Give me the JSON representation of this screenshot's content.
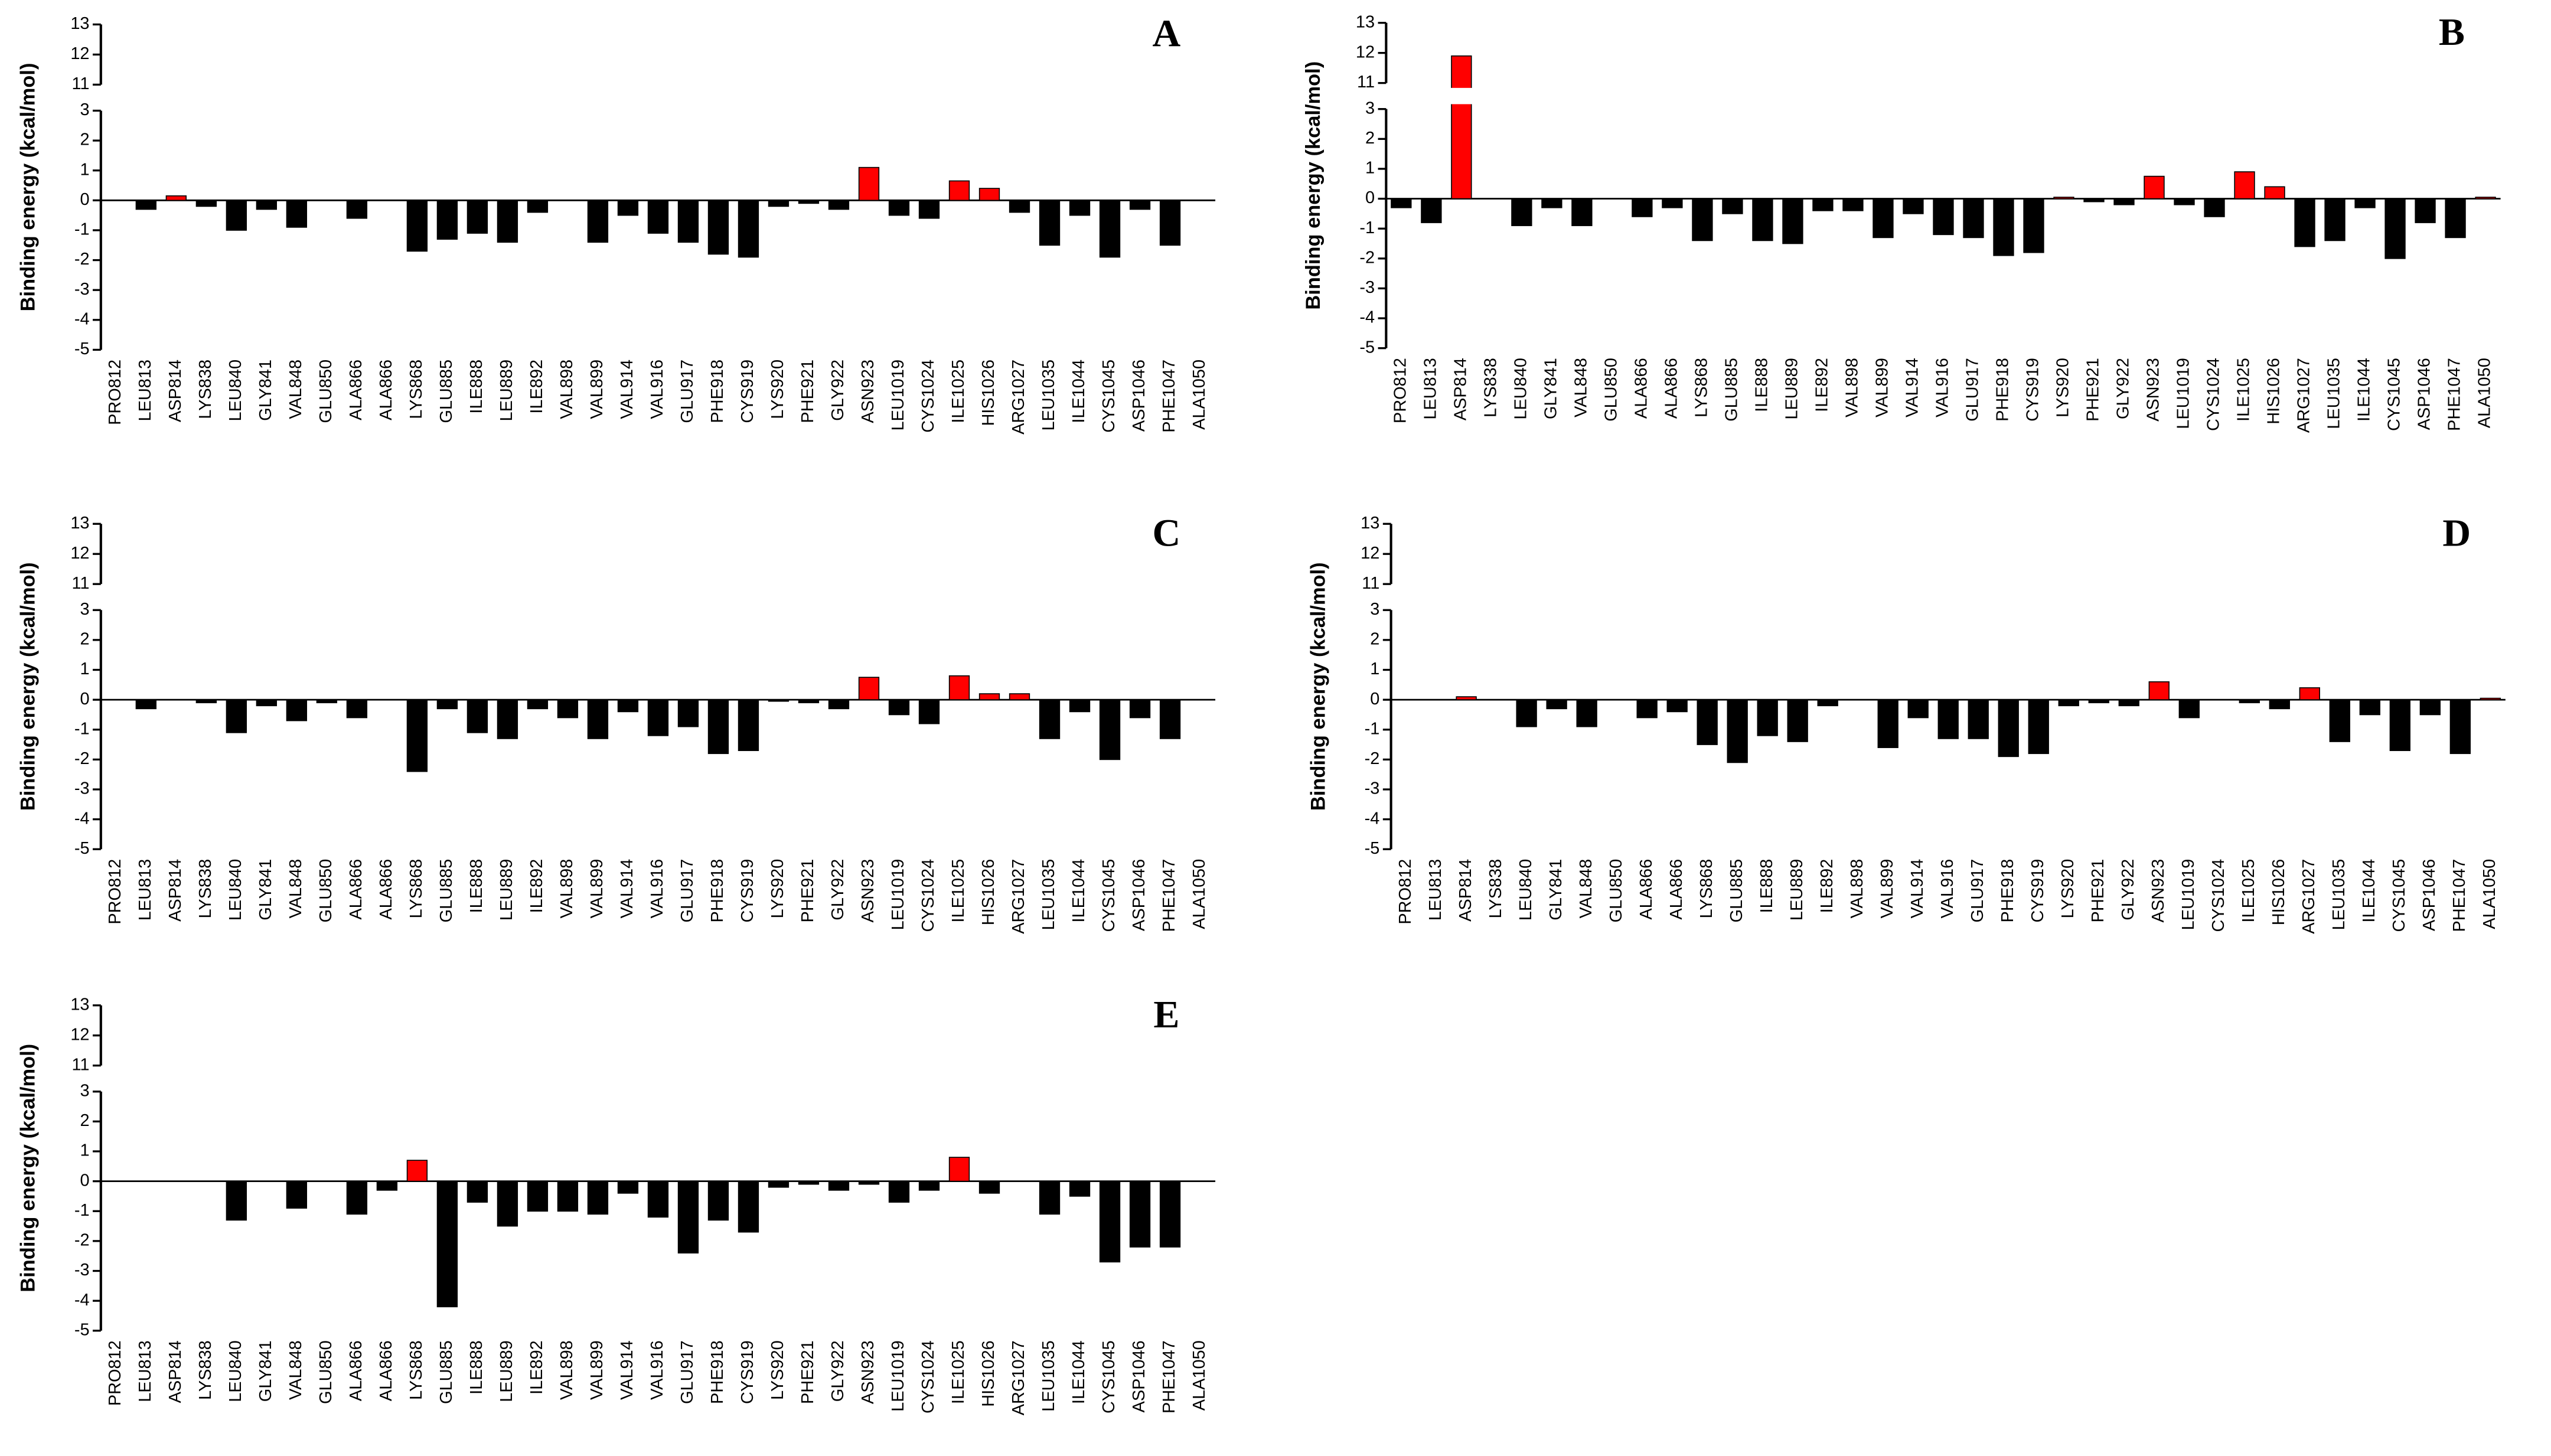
{
  "chart_data": [
    {
      "type": "bar",
      "panel_label": "A",
      "y_label": "Binding energy (kcal/mol)",
      "categories": [
        "PRO812",
        "LEU813",
        "ASP814",
        "LYS838",
        "LEU840",
        "GLY841",
        "VAL848",
        "GLU850",
        "ALA866",
        "ALA866",
        "LYS868",
        "GLU885",
        "ILE888",
        "LEU889",
        "ILE892",
        "VAL898",
        "VAL899",
        "VAL914",
        "VAL916",
        "GLU917",
        "PHE918",
        "CYS919",
        "LYS920",
        "PHE921",
        "GLY922",
        "ASN923",
        "LEU1019",
        "CYS1024",
        "ILE1025",
        "HIS1026",
        "ARG1027",
        "LEU1035",
        "ILE1044",
        "CYS1045",
        "ASP1046",
        "PHE1047",
        "ALA1050"
      ],
      "values": [
        0,
        -0.3,
        0.15,
        -0.2,
        -1.0,
        -0.3,
        -0.9,
        0,
        -0.6,
        0,
        -1.7,
        -1.3,
        -1.1,
        -1.4,
        -0.4,
        0,
        -1.4,
        -0.5,
        -1.1,
        -1.4,
        -1.8,
        -1.9,
        -0.2,
        -0.1,
        -0.3,
        1.1,
        -0.5,
        -0.6,
        0.65,
        0.4,
        -0.4,
        -1.5,
        -0.5,
        -1.9,
        -0.3,
        -1.5,
        0
      ],
      "ylim": [
        -5,
        13
      ],
      "axis_break": [
        3,
        11
      ],
      "yticks": [
        -5,
        -4,
        -3,
        -2,
        -1,
        0,
        1,
        2,
        3,
        11,
        12,
        13
      ],
      "positive_color": "#ff0000",
      "negative_color": "#000000"
    },
    {
      "type": "bar",
      "panel_label": "B",
      "y_label": "Binding energy (kcal/mol)",
      "categories": [
        "PRO812",
        "LEU813",
        "ASP814",
        "LYS838",
        "LEU840",
        "GLY841",
        "VAL848",
        "GLU850",
        "ALA866",
        "ALA866",
        "LYS868",
        "GLU885",
        "ILE888",
        "LEU889",
        "ILE892",
        "VAL898",
        "VAL899",
        "VAL914",
        "VAL916",
        "GLU917",
        "PHE918",
        "CYS919",
        "LYS920",
        "PHE921",
        "GLY922",
        "ASN923",
        "LEU1019",
        "CYS1024",
        "ILE1025",
        "HIS1026",
        "ARG1027",
        "LEU1035",
        "ILE1044",
        "CYS1045",
        "ASP1046",
        "PHE1047",
        "ALA1050"
      ],
      "values": [
        -0.3,
        -0.8,
        11.9,
        0,
        -0.9,
        -0.3,
        -0.9,
        0,
        -0.6,
        -0.3,
        -1.4,
        -0.5,
        -1.4,
        -1.5,
        -0.4,
        -0.4,
        -1.3,
        -0.5,
        -1.2,
        -1.3,
        -1.9,
        -1.8,
        0.05,
        -0.1,
        -0.2,
        0.75,
        -0.2,
        -0.6,
        0.9,
        0.4,
        -1.6,
        -1.4,
        -0.3,
        -2.0,
        -0.8,
        -1.3,
        0.05
      ],
      "ylim": [
        -5,
        13
      ],
      "axis_break": [
        3,
        11
      ],
      "yticks": [
        -5,
        -4,
        -3,
        -2,
        -1,
        0,
        1,
        2,
        3,
        11,
        12,
        13
      ],
      "positive_color": "#ff0000",
      "negative_color": "#000000"
    },
    {
      "type": "bar",
      "panel_label": "C",
      "y_label": "Binding energy (kcal/mol)",
      "categories": [
        "PRO812",
        "LEU813",
        "ASP814",
        "LYS838",
        "LEU840",
        "GLY841",
        "VAL848",
        "GLU850",
        "ALA866",
        "ALA866",
        "LYS868",
        "GLU885",
        "ILE888",
        "LEU889",
        "ILE892",
        "VAL898",
        "VAL899",
        "VAL914",
        "VAL916",
        "GLU917",
        "PHE918",
        "CYS919",
        "LYS920",
        "PHE921",
        "GLY922",
        "ASN923",
        "LEU1019",
        "CYS1024",
        "ILE1025",
        "HIS1026",
        "ARG1027",
        "LEU1035",
        "ILE1044",
        "CYS1045",
        "ASP1046",
        "PHE1047",
        "ALA1050"
      ],
      "values": [
        0,
        -0.3,
        0,
        -0.1,
        -1.1,
        -0.2,
        -0.7,
        -0.1,
        -0.6,
        0,
        -2.4,
        -0.3,
        -1.1,
        -1.3,
        -0.3,
        -0.6,
        -1.3,
        -0.4,
        -1.2,
        -0.9,
        -1.8,
        -1.7,
        -0.05,
        -0.1,
        -0.3,
        0.75,
        -0.5,
        -0.8,
        0.8,
        0.2,
        0.2,
        -1.3,
        -0.4,
        -2.0,
        -0.6,
        -1.3,
        0
      ],
      "ylim": [
        -5,
        13
      ],
      "axis_break": [
        3,
        11
      ],
      "yticks": [
        -5,
        -4,
        -3,
        -2,
        -1,
        0,
        1,
        2,
        3,
        11,
        12,
        13
      ],
      "positive_color": "#ff0000",
      "negative_color": "#000000"
    },
    {
      "type": "bar",
      "panel_label": "D",
      "y_label": "Binding energy (kcal/mol)",
      "categories": [
        "PRO812",
        "LEU813",
        "ASP814",
        "LYS838",
        "LEU840",
        "GLY841",
        "VAL848",
        "GLU850",
        "ALA866",
        "ALA866",
        "LYS868",
        "GLU885",
        "ILE888",
        "LEU889",
        "ILE892",
        "VAL898",
        "VAL899",
        "VAL914",
        "VAL916",
        "GLU917",
        "PHE918",
        "CYS919",
        "LYS920",
        "PHE921",
        "GLY922",
        "ASN923",
        "LEU1019",
        "CYS1024",
        "ILE1025",
        "HIS1026",
        "ARG1027",
        "LEU1035",
        "ILE1044",
        "CYS1045",
        "ASP1046",
        "PHE1047",
        "ALA1050"
      ],
      "values": [
        0,
        0,
        0.1,
        0,
        -0.9,
        -0.3,
        -0.9,
        0,
        -0.6,
        -0.4,
        -1.5,
        -2.1,
        -1.2,
        -1.4,
        -0.2,
        0,
        -1.6,
        -0.6,
        -1.3,
        -1.3,
        -1.9,
        -1.8,
        -0.2,
        -0.1,
        -0.2,
        0.6,
        -0.6,
        0,
        -0.1,
        -0.3,
        0.4,
        -1.4,
        -0.5,
        -1.7,
        -0.5,
        -1.8,
        0.05
      ],
      "ylim": [
        -5,
        13
      ],
      "axis_break": [
        3,
        11
      ],
      "yticks": [
        -5,
        -4,
        -3,
        -2,
        -1,
        0,
        1,
        2,
        3,
        11,
        12,
        13
      ],
      "positive_color": "#ff0000",
      "negative_color": "#000000"
    },
    {
      "type": "bar",
      "panel_label": "E",
      "y_label": "Binding energy (kcal/mol)",
      "categories": [
        "PRO812",
        "LEU813",
        "ASP814",
        "LYS838",
        "LEU840",
        "GLY841",
        "VAL848",
        "GLU850",
        "ALA866",
        "ALA866",
        "LYS868",
        "GLU885",
        "ILE888",
        "LEU889",
        "ILE892",
        "VAL898",
        "VAL899",
        "VAL914",
        "VAL916",
        "GLU917",
        "PHE918",
        "CYS919",
        "LYS920",
        "PHE921",
        "GLY922",
        "ASN923",
        "LEU1019",
        "CYS1024",
        "ILE1025",
        "HIS1026",
        "ARG1027",
        "LEU1035",
        "ILE1044",
        "CYS1045",
        "ASP1046",
        "PHE1047",
        "ALA1050"
      ],
      "values": [
        0,
        0,
        0,
        0,
        -1.3,
        0,
        -0.9,
        0,
        -1.1,
        -0.3,
        0.7,
        -4.2,
        -0.7,
        -1.5,
        -1.0,
        -1.0,
        -1.1,
        -0.4,
        -1.2,
        -2.4,
        -1.3,
        -1.7,
        -0.2,
        -0.1,
        -0.3,
        -0.1,
        -0.7,
        -0.3,
        0.8,
        -0.4,
        0,
        -1.1,
        -0.5,
        -2.7,
        -2.2,
        -2.2,
        0
      ],
      "ylim": [
        -5,
        13
      ],
      "axis_break": [
        3,
        11
      ],
      "yticks": [
        -5,
        -4,
        -3,
        -2,
        -1,
        0,
        1,
        2,
        3,
        11,
        12,
        13
      ],
      "positive_color": "#ff0000",
      "negative_color": "#000000"
    }
  ]
}
